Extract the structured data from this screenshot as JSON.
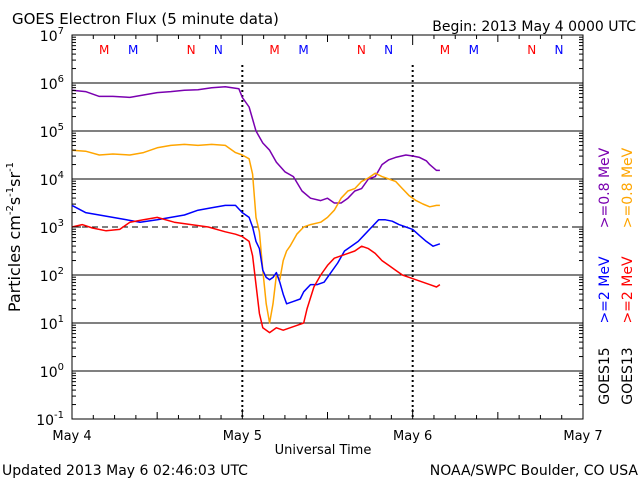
{
  "header": {
    "title": "GOES Electron Flux (5 minute data)",
    "begin": "Begin: 2013 May 4 0000 UTC"
  },
  "footer": {
    "updated": "Updated 2013 May  6 02:46:03 UTC",
    "credit": "NOAA/SWPC Boulder, CO USA"
  },
  "chart_data": {
    "type": "line",
    "title": "GOES Electron Flux (5 minute data)",
    "xlabel": "Universal Time",
    "ylabel": "Particles cm-2s-1sr-1",
    "y_scale": "log",
    "ylim_exp": [
      -1,
      7
    ],
    "xlim_days": [
      0,
      3
    ],
    "y_ticks": [
      {
        "base": "10",
        "exp": "7"
      },
      {
        "base": "10",
        "exp": "6"
      },
      {
        "base": "10",
        "exp": "5"
      },
      {
        "base": "10",
        "exp": "4"
      },
      {
        "base": "10",
        "exp": "3"
      },
      {
        "base": "10",
        "exp": "2"
      },
      {
        "base": "10",
        "exp": "1"
      },
      {
        "base": "10",
        "exp": "0"
      },
      {
        "base": "10",
        "exp": "-1"
      }
    ],
    "x_ticks": [
      "May 4",
      "May 5",
      "May 6",
      "May 7"
    ],
    "dashed_threshold_exp": 3,
    "legend": [
      {
        "sat": "GOES13",
        "energy": ">=0.8 MeV",
        "color": "#ffa500"
      },
      {
        "sat": "GOES13",
        "energy": ">=2 MeV",
        "color": "#ff0000"
      },
      {
        "sat": "GOES15",
        "energy": ">=0.8 MeV",
        "color": "#7a00b0"
      },
      {
        "sat": "GOES15",
        "energy": ">=2 MeV",
        "color": "#0000ff"
      }
    ],
    "markers": [
      {
        "t": 0.33,
        "label": "M",
        "color": "#ff0000"
      },
      {
        "t": 0.5,
        "label": "M",
        "color": "#0000ff"
      },
      {
        "t": 0.84,
        "label": "N",
        "color": "#ff0000"
      },
      {
        "t": 1.0,
        "label": "N",
        "color": "#0000ff"
      },
      {
        "t": 1.33,
        "label": "M",
        "color": "#ff0000"
      },
      {
        "t": 1.5,
        "label": "M",
        "color": "#0000ff"
      },
      {
        "t": 1.84,
        "label": "N",
        "color": "#ff0000"
      },
      {
        "t": 2.0,
        "label": "N",
        "color": "#0000ff"
      },
      {
        "t": 2.33,
        "label": "M",
        "color": "#ff0000"
      },
      {
        "t": 2.5,
        "label": "M",
        "color": "#0000ff"
      },
      {
        "t": 2.84,
        "label": "N",
        "color": "#ff0000"
      },
      {
        "t": 3.0,
        "label": "N",
        "color": "#0000ff"
      }
    ],
    "series": [
      {
        "name": "GOES15 >=0.8 MeV",
        "color": "#7a00b0",
        "points": [
          [
            0.0,
            5.85
          ],
          [
            0.08,
            5.82
          ],
          [
            0.16,
            5.72
          ],
          [
            0.24,
            5.72
          ],
          [
            0.34,
            5.7
          ],
          [
            0.42,
            5.75
          ],
          [
            0.5,
            5.8
          ],
          [
            0.58,
            5.82
          ],
          [
            0.66,
            5.85
          ],
          [
            0.74,
            5.86
          ],
          [
            0.82,
            5.9
          ],
          [
            0.9,
            5.92
          ],
          [
            0.98,
            5.88
          ],
          [
            1.0,
            5.7
          ],
          [
            1.04,
            5.5
          ],
          [
            1.08,
            5.0
          ],
          [
            1.12,
            4.75
          ],
          [
            1.16,
            4.6
          ],
          [
            1.2,
            4.35
          ],
          [
            1.25,
            4.15
          ],
          [
            1.3,
            4.05
          ],
          [
            1.35,
            3.75
          ],
          [
            1.4,
            3.6
          ],
          [
            1.46,
            3.55
          ],
          [
            1.5,
            3.6
          ],
          [
            1.54,
            3.5
          ],
          [
            1.58,
            3.5
          ],
          [
            1.62,
            3.6
          ],
          [
            1.66,
            3.75
          ],
          [
            1.7,
            3.8
          ],
          [
            1.74,
            4.0
          ],
          [
            1.78,
            4.05
          ],
          [
            1.82,
            4.3
          ],
          [
            1.86,
            4.4
          ],
          [
            1.9,
            4.45
          ],
          [
            1.96,
            4.5
          ],
          [
            2.0,
            4.48
          ],
          [
            2.04,
            4.45
          ],
          [
            2.08,
            4.38
          ],
          [
            2.1,
            4.3
          ],
          [
            2.14,
            4.18
          ],
          [
            2.16,
            4.18
          ]
        ]
      },
      {
        "name": "GOES13 >=0.8 MeV",
        "color": "#ffa500",
        "points": [
          [
            0.0,
            4.6
          ],
          [
            0.08,
            4.58
          ],
          [
            0.16,
            4.5
          ],
          [
            0.24,
            4.52
          ],
          [
            0.34,
            4.5
          ],
          [
            0.42,
            4.55
          ],
          [
            0.5,
            4.65
          ],
          [
            0.58,
            4.7
          ],
          [
            0.66,
            4.72
          ],
          [
            0.74,
            4.7
          ],
          [
            0.82,
            4.72
          ],
          [
            0.9,
            4.7
          ],
          [
            0.96,
            4.55
          ],
          [
            1.0,
            4.5
          ],
          [
            1.04,
            4.42
          ],
          [
            1.06,
            4.1
          ],
          [
            1.08,
            3.2
          ],
          [
            1.1,
            2.9
          ],
          [
            1.12,
            2.1
          ],
          [
            1.14,
            1.4
          ],
          [
            1.16,
            1.0
          ],
          [
            1.18,
            1.4
          ],
          [
            1.2,
            2.0
          ],
          [
            1.22,
            1.9
          ],
          [
            1.24,
            2.3
          ],
          [
            1.26,
            2.5
          ],
          [
            1.28,
            2.6
          ],
          [
            1.32,
            2.85
          ],
          [
            1.36,
            3.0
          ],
          [
            1.4,
            3.05
          ],
          [
            1.46,
            3.1
          ],
          [
            1.5,
            3.2
          ],
          [
            1.54,
            3.35
          ],
          [
            1.58,
            3.6
          ],
          [
            1.62,
            3.75
          ],
          [
            1.66,
            3.8
          ],
          [
            1.7,
            3.95
          ],
          [
            1.74,
            4.02
          ],
          [
            1.78,
            4.12
          ],
          [
            1.82,
            4.05
          ],
          [
            1.86,
            4.0
          ],
          [
            1.9,
            3.95
          ],
          [
            1.94,
            3.8
          ],
          [
            1.98,
            3.65
          ],
          [
            2.02,
            3.55
          ],
          [
            2.06,
            3.48
          ],
          [
            2.1,
            3.42
          ],
          [
            2.14,
            3.45
          ],
          [
            2.16,
            3.45
          ]
        ]
      },
      {
        "name": "GOES15 >=2 MeV",
        "color": "#0000ff",
        "points": [
          [
            0.0,
            3.45
          ],
          [
            0.08,
            3.3
          ],
          [
            0.16,
            3.25
          ],
          [
            0.24,
            3.2
          ],
          [
            0.32,
            3.15
          ],
          [
            0.4,
            3.1
          ],
          [
            0.5,
            3.15
          ],
          [
            0.58,
            3.2
          ],
          [
            0.66,
            3.25
          ],
          [
            0.74,
            3.35
          ],
          [
            0.82,
            3.4
          ],
          [
            0.9,
            3.45
          ],
          [
            0.96,
            3.45
          ],
          [
            1.0,
            3.3
          ],
          [
            1.04,
            3.2
          ],
          [
            1.06,
            3.0
          ],
          [
            1.08,
            2.7
          ],
          [
            1.1,
            2.55
          ],
          [
            1.12,
            2.1
          ],
          [
            1.14,
            1.95
          ],
          [
            1.16,
            1.9
          ],
          [
            1.18,
            1.95
          ],
          [
            1.2,
            2.05
          ],
          [
            1.22,
            1.85
          ],
          [
            1.24,
            1.6
          ],
          [
            1.26,
            1.4
          ],
          [
            1.3,
            1.45
          ],
          [
            1.34,
            1.5
          ],
          [
            1.36,
            1.65
          ],
          [
            1.4,
            1.8
          ],
          [
            1.44,
            1.8
          ],
          [
            1.48,
            1.85
          ],
          [
            1.52,
            2.05
          ],
          [
            1.56,
            2.25
          ],
          [
            1.6,
            2.5
          ],
          [
            1.64,
            2.6
          ],
          [
            1.68,
            2.7
          ],
          [
            1.72,
            2.85
          ],
          [
            1.76,
            3.0
          ],
          [
            1.8,
            3.15
          ],
          [
            1.84,
            3.15
          ],
          [
            1.88,
            3.12
          ],
          [
            1.92,
            3.05
          ],
          [
            1.96,
            3.0
          ],
          [
            2.0,
            2.95
          ],
          [
            2.04,
            2.82
          ],
          [
            2.08,
            2.7
          ],
          [
            2.12,
            2.6
          ],
          [
            2.16,
            2.65
          ]
        ]
      },
      {
        "name": "GOES13 >=2 MeV",
        "color": "#ff0000",
        "points": [
          [
            0.0,
            3.0
          ],
          [
            0.06,
            3.05
          ],
          [
            0.12,
            2.98
          ],
          [
            0.2,
            2.92
          ],
          [
            0.28,
            2.95
          ],
          [
            0.34,
            3.1
          ],
          [
            0.42,
            3.15
          ],
          [
            0.5,
            3.2
          ],
          [
            0.6,
            3.1
          ],
          [
            0.7,
            3.05
          ],
          [
            0.8,
            3.0
          ],
          [
            0.9,
            2.9
          ],
          [
            0.96,
            2.85
          ],
          [
            1.0,
            2.8
          ],
          [
            1.04,
            2.7
          ],
          [
            1.06,
            2.4
          ],
          [
            1.08,
            1.8
          ],
          [
            1.1,
            1.2
          ],
          [
            1.12,
            0.9
          ],
          [
            1.16,
            0.8
          ],
          [
            1.2,
            0.9
          ],
          [
            1.24,
            0.85
          ],
          [
            1.28,
            0.9
          ],
          [
            1.32,
            0.95
          ],
          [
            1.36,
            1.0
          ],
          [
            1.38,
            1.3
          ],
          [
            1.42,
            1.75
          ],
          [
            1.46,
            2.0
          ],
          [
            1.5,
            2.2
          ],
          [
            1.54,
            2.35
          ],
          [
            1.58,
            2.4
          ],
          [
            1.62,
            2.45
          ],
          [
            1.66,
            2.5
          ],
          [
            1.7,
            2.6
          ],
          [
            1.74,
            2.55
          ],
          [
            1.78,
            2.45
          ],
          [
            1.82,
            2.3
          ],
          [
            1.86,
            2.2
          ],
          [
            1.9,
            2.1
          ],
          [
            1.94,
            2.0
          ],
          [
            1.98,
            1.95
          ],
          [
            2.02,
            1.9
          ],
          [
            2.06,
            1.85
          ],
          [
            2.1,
            1.8
          ],
          [
            2.14,
            1.75
          ],
          [
            2.16,
            1.8
          ]
        ]
      }
    ]
  }
}
